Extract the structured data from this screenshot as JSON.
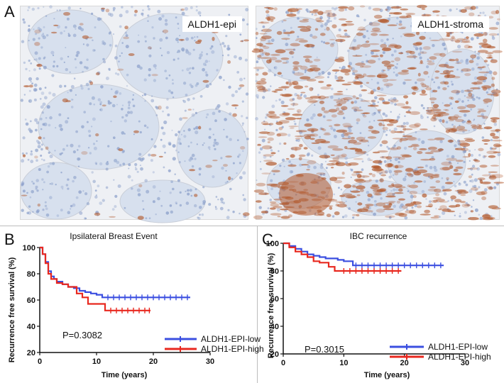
{
  "panel_A": {
    "letter": "A",
    "images": [
      {
        "label": "ALDH1-epi",
        "stain": "sparse"
      },
      {
        "label": "ALDH1-stroma",
        "stain": "dense"
      }
    ],
    "colors": {
      "tissue": "#d7e0ee",
      "nuclei": "#8fa3cc",
      "dab_stain": "#b25a2e"
    }
  },
  "chart_data": [
    {
      "type": "line",
      "panel": "B",
      "title": "Ipsilateral Breast Event",
      "xlabel": "Time (years)",
      "ylabel": "Recurrence free survival (%)",
      "xlim": [
        0,
        30
      ],
      "ylim": [
        20,
        100
      ],
      "xticks": [
        0,
        10,
        20,
        30
      ],
      "yticks": [
        20,
        40,
        60,
        80,
        100
      ],
      "legend_position": "bottom-right",
      "annotation": "P=0.3082",
      "series": [
        {
          "name": "ALDH1-EPI-low",
          "color": "#3b4fe0",
          "x": [
            0,
            0.5,
            1.0,
            1.5,
            2.0,
            2.5,
            3.0,
            4.0,
            5.0,
            6.0,
            7.0,
            8.0,
            9.0,
            10.0,
            11.0,
            26.5
          ],
          "y": [
            100,
            95,
            89,
            82,
            78,
            76,
            74,
            72,
            70,
            69,
            67,
            66,
            65,
            64,
            62,
            62
          ],
          "censor_x": [
            12,
            13,
            14,
            15,
            16,
            17,
            18,
            19,
            20,
            21,
            22,
            23,
            24,
            25,
            26
          ]
        },
        {
          "name": "ALDH1-EPI-high",
          "color": "#e8281f",
          "x": [
            0,
            0.5,
            1.0,
            1.5,
            2.0,
            3.0,
            4.0,
            5.0,
            6.5,
            7.5,
            8.5,
            11.5,
            19.5
          ],
          "y": [
            100,
            95,
            88,
            80,
            76,
            73,
            72,
            70,
            65,
            62,
            57,
            52,
            52
          ],
          "censor_x": [
            12.5,
            13.5,
            14.5,
            15.5,
            16.5,
            17.5,
            18.5,
            19.3
          ]
        }
      ]
    },
    {
      "type": "line",
      "panel": "C",
      "title": "IBC recurrence",
      "xlabel": "Time (years)",
      "ylabel": "Recurrence free survival (%)",
      "xlim": [
        0,
        30
      ],
      "ylim": [
        20,
        100
      ],
      "xticks": [
        0,
        10,
        20,
        30
      ],
      "yticks": [
        20,
        40,
        60,
        80,
        100
      ],
      "legend_position": "bottom-right",
      "annotation": "P=0.3015",
      "series": [
        {
          "name": "ALDH1-EPI-low",
          "color": "#3b4fe0",
          "x": [
            0,
            1.0,
            2.0,
            3.0,
            4.0,
            5.0,
            6.0,
            7.0,
            9.0,
            10.0,
            11.5,
            26.5
          ],
          "y": [
            100,
            98,
            96,
            94,
            92,
            91,
            90,
            89,
            88,
            87,
            84,
            84
          ],
          "censor_x": [
            12,
            13,
            14,
            15,
            16,
            17,
            18,
            19,
            20,
            21,
            22,
            23,
            24,
            25,
            26
          ]
        },
        {
          "name": "ALDH1-EPI-high",
          "color": "#e8281f",
          "x": [
            0,
            1.0,
            2.0,
            3.0,
            4.0,
            5.0,
            6.0,
            7.5,
            8.5,
            19.5
          ],
          "y": [
            100,
            97,
            94,
            92,
            90,
            87,
            86,
            83,
            80,
            80
          ],
          "censor_x": [
            10,
            11,
            12,
            13,
            14,
            15,
            16,
            17,
            18,
            19
          ]
        }
      ]
    }
  ]
}
